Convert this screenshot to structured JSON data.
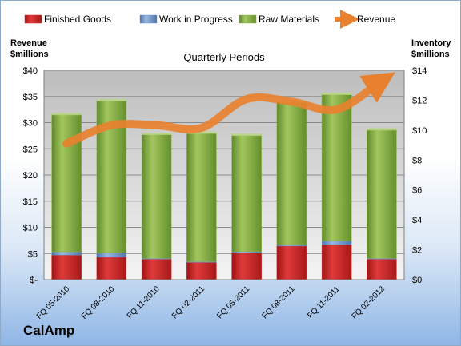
{
  "company": "CalAmp",
  "chart_data": {
    "type": "bar",
    "title": "Quarterly Periods",
    "left_axis_label": [
      "Revenue",
      "$millions"
    ],
    "right_axis_label": [
      "Inventory",
      "$millions"
    ],
    "categories": [
      "FQ 05-2010",
      "FQ 08-2010",
      "FQ 11-2010",
      "FQ 02-2011",
      "FQ 05-2011",
      "FQ 08-2011",
      "FQ 11-2011",
      "FQ 02-2012"
    ],
    "left_ticks": [
      "$-",
      "$5",
      "$10",
      "$15",
      "$20",
      "$25",
      "$30",
      "$35",
      "$40"
    ],
    "right_ticks": [
      "$0",
      "$2",
      "$4",
      "$6",
      "$8",
      "$10",
      "$12",
      "$14"
    ],
    "left_ylim": [
      0,
      40
    ],
    "right_ylim": [
      0,
      14
    ],
    "grid": true,
    "legend_position": "top",
    "series": [
      {
        "name": "Finished Goods",
        "type": "stacked-bar",
        "axis": "right",
        "color": "#d42a2a",
        "values": [
          1.65,
          1.5,
          1.38,
          1.16,
          1.78,
          2.25,
          2.35,
          1.38
        ]
      },
      {
        "name": "Work in Progress",
        "type": "stacked-bar",
        "axis": "right",
        "color": "#7096c8",
        "values": [
          0.22,
          0.28,
          0.05,
          0.05,
          0.1,
          0.1,
          0.25,
          0.05
        ]
      },
      {
        "name": "Raw Materials",
        "type": "stacked-bar",
        "axis": "right",
        "color": "#8db24b",
        "values": [
          9.18,
          10.2,
          8.3,
          8.6,
          7.79,
          9.55,
          9.8,
          8.6
        ]
      },
      {
        "name": "Revenue",
        "type": "line",
        "axis": "left",
        "color": "#e8812f",
        "values": [
          26,
          29.5,
          29.5,
          29,
          34.5,
          34,
          32.5,
          38
        ]
      }
    ]
  }
}
